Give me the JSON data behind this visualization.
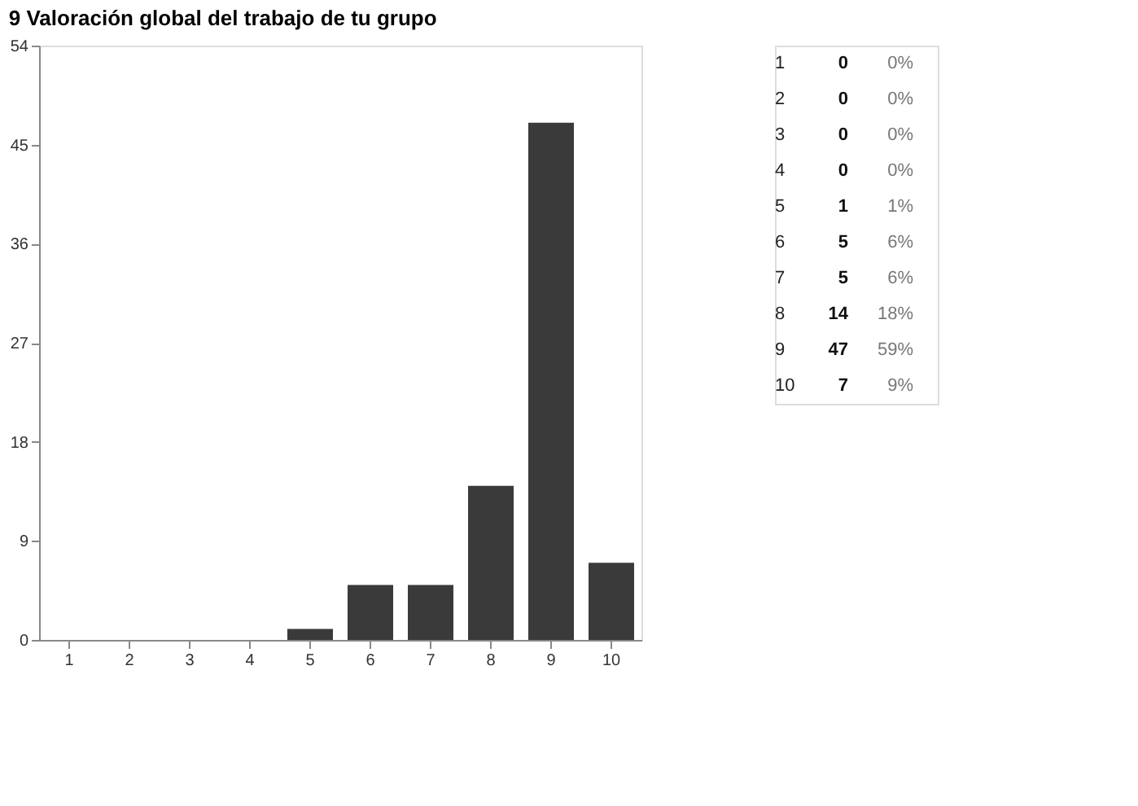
{
  "chart_data": {
    "type": "bar",
    "title": "9 Valoración global del trabajo de tu grupo",
    "categories": [
      "1",
      "2",
      "3",
      "4",
      "5",
      "6",
      "7",
      "8",
      "9",
      "10"
    ],
    "values": [
      0,
      0,
      0,
      0,
      1,
      5,
      5,
      14,
      47,
      7
    ],
    "color": "#3a3a3a",
    "ylim": [
      0,
      54
    ],
    "yticks": [
      0,
      9,
      18,
      27,
      36,
      45,
      54
    ],
    "grid": false,
    "annotations": [
      "0",
      "0%",
      "0",
      "0%",
      "0",
      "0%",
      "0",
      "0%",
      "1",
      "1%",
      "5",
      "6%",
      "5",
      "6%",
      "14",
      "18%",
      "47",
      "59%",
      "7",
      "9%"
    ]
  }
}
